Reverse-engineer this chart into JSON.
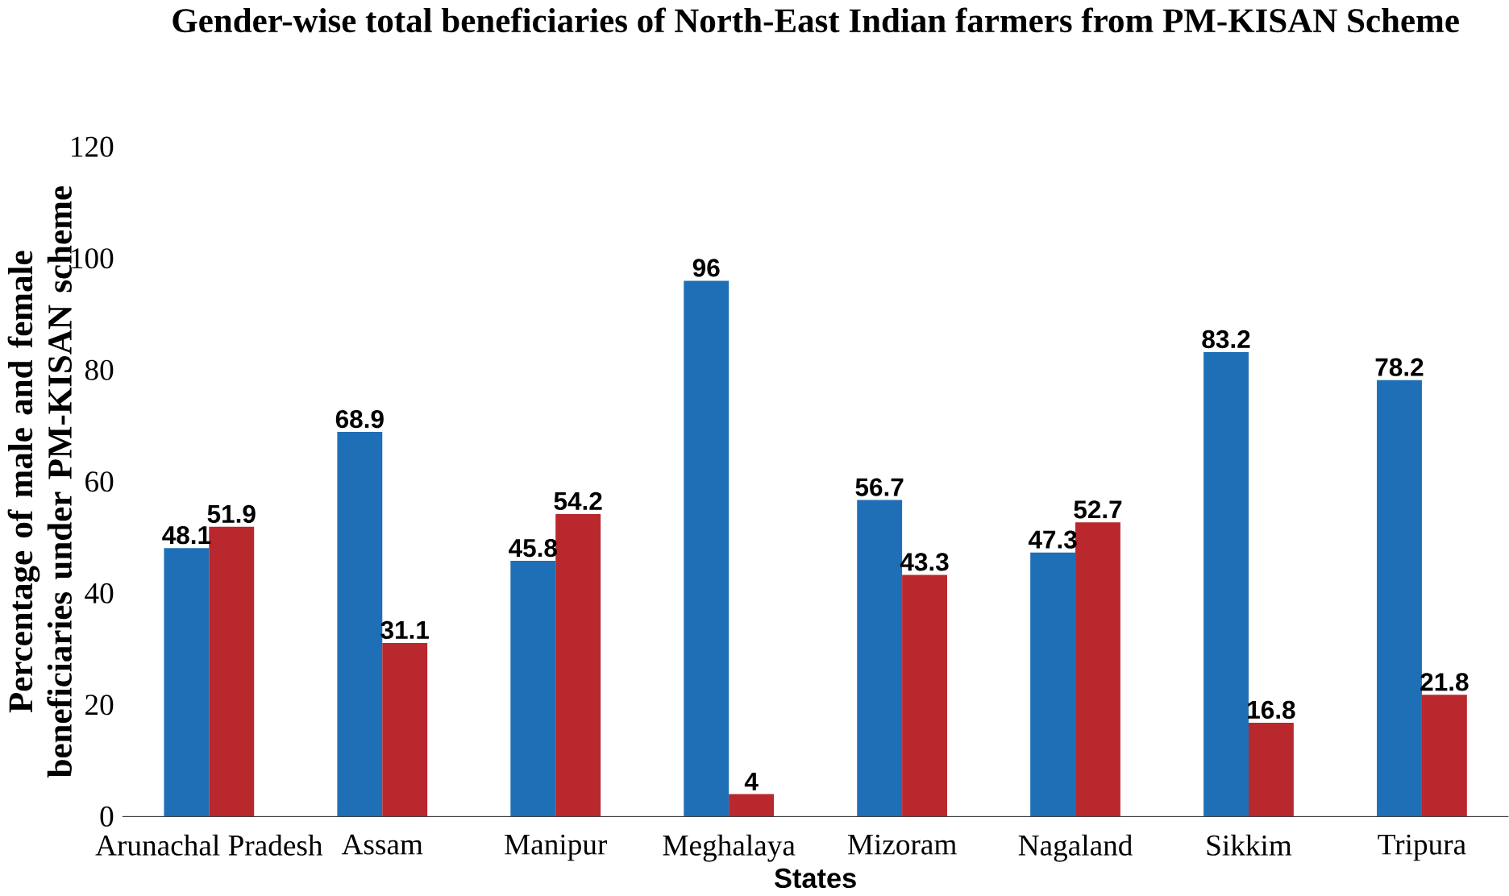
{
  "chart_data": {
    "type": "bar",
    "title": "Gender-wise total beneficiaries of North-East Indian farmers from PM-KISAN Scheme",
    "xlabel": "States",
    "ylabel": "Percentage of male and female beneficiaries under PM-KISAN scheme",
    "categories": [
      "Arunachal Pradesh",
      "Assam",
      "Manipur",
      "Meghalaya",
      "Mizoram",
      "Nagaland",
      "Sikkim",
      "Tripura"
    ],
    "series": [
      {
        "color": "#1f6fb6",
        "values": [
          48.1,
          68.9,
          45.8,
          96,
          56.7,
          47.3,
          83.2,
          78.2
        ]
      },
      {
        "color": "#b8282d",
        "values": [
          51.9,
          31.1,
          54.2,
          4,
          43.3,
          52.7,
          16.8,
          21.8
        ]
      }
    ],
    "ylim": [
      0,
      120
    ],
    "yticks": [
      0,
      20,
      40,
      60,
      80,
      100,
      120
    ],
    "data_labels": true,
    "grid": false
  }
}
